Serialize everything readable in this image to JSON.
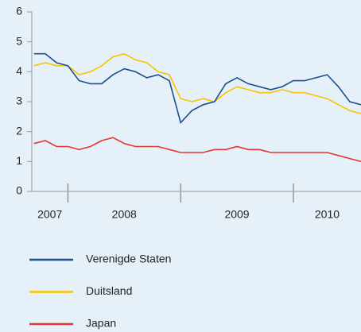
{
  "chart_data": {
    "type": "line",
    "x": [
      2007.7,
      2007.8,
      2007.9,
      2008.0,
      2008.1,
      2008.2,
      2008.3,
      2008.4,
      2008.5,
      2008.6,
      2008.7,
      2008.8,
      2008.9,
      2009.0,
      2009.1,
      2009.2,
      2009.3,
      2009.4,
      2009.5,
      2009.6,
      2009.7,
      2009.8,
      2009.9,
      2010.0,
      2010.1,
      2010.2,
      2010.3,
      2010.4,
      2010.5,
      2010.6
    ],
    "series": [
      {
        "name": "Verenigde Staten",
        "color": "#1b4f8f",
        "values": [
          4.6,
          4.6,
          4.3,
          4.2,
          3.7,
          3.6,
          3.6,
          3.9,
          4.1,
          4.0,
          3.8,
          3.9,
          3.7,
          2.3,
          2.7,
          2.9,
          3.0,
          3.6,
          3.8,
          3.6,
          3.5,
          3.4,
          3.5,
          3.7,
          3.7,
          3.8,
          3.9,
          3.5,
          3.0,
          2.9
        ]
      },
      {
        "name": "Duitsland",
        "color": "#f6c500",
        "values": [
          4.2,
          4.3,
          4.2,
          4.2,
          3.9,
          4.0,
          4.2,
          4.5,
          4.6,
          4.4,
          4.3,
          4.0,
          3.9,
          3.1,
          3.0,
          3.1,
          3.0,
          3.3,
          3.5,
          3.4,
          3.3,
          3.3,
          3.4,
          3.3,
          3.3,
          3.2,
          3.1,
          2.9,
          2.7,
          2.6
        ]
      },
      {
        "name": "Japan",
        "color": "#e2382f",
        "values": [
          1.6,
          1.7,
          1.5,
          1.5,
          1.4,
          1.5,
          1.7,
          1.8,
          1.6,
          1.5,
          1.5,
          1.5,
          1.4,
          1.3,
          1.3,
          1.3,
          1.4,
          1.4,
          1.5,
          1.4,
          1.4,
          1.3,
          1.3,
          1.3,
          1.3,
          1.3,
          1.3,
          1.2,
          1.1,
          1.0
        ]
      }
    ],
    "xlim": [
      2007.68,
      2010.6
    ],
    "xticks": [
      2008,
      2009,
      2010
    ],
    "year_labels": [
      "2007",
      "2008",
      "2009",
      "2010"
    ],
    "ylim": [
      0,
      6
    ],
    "yticks": [
      0,
      1,
      2,
      3,
      4,
      5,
      6
    ],
    "grid": false,
    "legend": "bottom"
  }
}
